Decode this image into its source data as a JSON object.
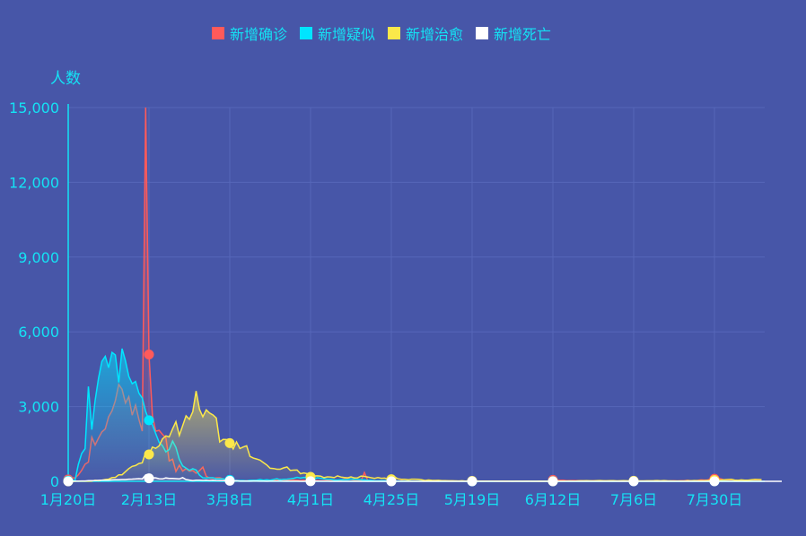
{
  "chart_data": {
    "type": "area",
    "ylabel": "人数",
    "ylim": [
      0,
      15000
    ],
    "y_ticks": [
      "0",
      "3,000",
      "6,000",
      "9,000",
      "12,000",
      "15,000"
    ],
    "y_tick_values": [
      0,
      3000,
      6000,
      9000,
      12000,
      15000
    ],
    "x_tick_labels": [
      "1月20日",
      "2月13日",
      "3月8日",
      "4月1日",
      "4月25日",
      "5月19日",
      "6月12日",
      "7月6日",
      "7月30日"
    ],
    "x_tick_interval_days": 24,
    "grid": true,
    "legend_placement": "top-center",
    "colors": {
      "background": "#4756a8",
      "grid": "#5667b9",
      "axis": "#14e3f5",
      "text": "#14e3f5"
    },
    "series": [
      {
        "name": "新增确诊",
        "color": "#ff5a5a",
        "values": [
          77,
          149,
          131,
          259,
          444,
          688,
          769,
          1771,
          1459,
          1737,
          1981,
          2099,
          2590,
          2829,
          3235,
          3887,
          3694,
          3143,
          3399,
          2656,
          3062,
          2478,
          2015,
          15152,
          5090,
          2641,
          2009,
          2048,
          1886,
          1749,
          820,
          889,
          397,
          648,
          409,
          508,
          406,
          433,
          327,
          427,
          573,
          202,
          125,
          119,
          139,
          143,
          99,
          44,
          40,
          19,
          24,
          15,
          8,
          11,
          20,
          16,
          21,
          13,
          34,
          39,
          41,
          46,
          39,
          78,
          47,
          67,
          55,
          54,
          45,
          31,
          48,
          36,
          35,
          35,
          31,
          19,
          30,
          39,
          32,
          62,
          42,
          46,
          99,
          108,
          89,
          46,
          36,
          26,
          352,
          27,
          16,
          8,
          11,
          12,
          10,
          6,
          11,
          6,
          3,
          22,
          2,
          4,
          1,
          2,
          1,
          2,
          1,
          2,
          2,
          1,
          1,
          17,
          7,
          2,
          7,
          3,
          5,
          8,
          5,
          6,
          6,
          6,
          4,
          3,
          3,
          11,
          7,
          5,
          4,
          4,
          1,
          4,
          2,
          7,
          4,
          5,
          1,
          4,
          4,
          5,
          3,
          3,
          11,
          8,
          57,
          49,
          40,
          44,
          28,
          25,
          32,
          26,
          30,
          22,
          13,
          11,
          22,
          19,
          13,
          17,
          7,
          8,
          19,
          3,
          3,
          3,
          5,
          3,
          8,
          4,
          7,
          7,
          10,
          8,
          9,
          11,
          10,
          8,
          14,
          13,
          22,
          14,
          20,
          22,
          39,
          22,
          22,
          37,
          59,
          50,
          55,
          109,
          105,
          127,
          98,
          49,
          43,
          36,
          27,
          33,
          41,
          40,
          47,
          24,
          28,
          44,
          35
        ]
      },
      {
        "name": "新增疑似",
        "color": "#00e5ff",
        "values": [
          27,
          60,
          20,
          680,
          1118,
          1309,
          3806,
          2077,
          3248,
          4148,
          4812,
          5019,
          4562,
          5173,
          5072,
          3971,
          5328,
          4833,
          4214,
          3916,
          4008,
          3536,
          3342,
          2807,
          2450,
          2277,
          1918,
          1563,
          1432,
          1185,
          1277,
          1614,
          1361,
          882,
          620,
          530,
          439,
          508,
          452,
          248,
          141,
          129,
          143,
          143,
          102,
          99,
          102,
          84,
          60,
          36,
          31,
          33,
          33,
          17,
          39,
          41,
          45,
          73,
          47,
          64,
          47,
          74,
          99,
          63,
          82,
          87,
          98,
          124,
          161,
          129,
          160,
          155,
          99,
          90,
          143,
          122,
          98,
          88,
          78,
          54,
          49,
          65,
          72,
          73,
          94,
          76,
          73,
          63,
          59,
          45,
          40,
          24,
          21,
          30,
          27,
          18,
          10,
          12,
          10,
          11,
          8,
          5,
          3,
          1,
          2,
          4,
          5,
          3,
          4,
          4,
          1,
          3,
          2,
          5,
          5,
          3,
          4,
          3,
          2,
          2,
          2,
          1,
          0,
          1,
          4,
          2,
          3,
          4,
          6,
          3,
          3,
          3,
          3,
          3,
          4,
          1,
          1,
          3,
          3,
          4,
          6,
          2,
          4,
          1,
          7,
          2,
          5,
          3,
          4,
          4,
          6,
          5,
          3,
          3,
          4,
          2,
          1,
          4,
          3,
          5,
          2,
          2,
          3,
          2,
          3,
          3,
          3,
          3,
          6,
          7,
          3,
          3,
          2,
          5,
          2,
          4,
          4,
          4,
          5,
          3,
          2,
          0,
          5,
          9,
          8,
          4,
          10,
          3,
          4,
          4,
          4,
          5,
          6,
          8,
          4,
          3,
          2,
          3,
          2,
          3,
          2,
          1,
          4,
          2,
          2,
          3,
          1
        ]
      },
      {
        "name": "新增治愈",
        "color": "#fbe84a",
        "values": [
          0,
          0,
          0,
          6,
          3,
          11,
          2,
          9,
          43,
          21,
          47,
          72,
          85,
          147,
          157,
          262,
          261,
          387,
          510,
          600,
          632,
          716,
          744,
          1171,
          1081,
          1373,
          1323,
          1425,
          1701,
          1824,
          1779,
          2109,
          2393,
          1846,
          2231,
          2628,
          2491,
          2794,
          3622,
          2884,
          2589,
          2867,
          2742,
          2663,
          2540,
          1584,
          1681,
          1678,
          1535,
          1297,
          1578,
          1318,
          1377,
          1427,
          1000,
          930,
          894,
          848,
          751,
          653,
          526,
          513,
          484,
          486,
          538,
          576,
          436,
          448,
          455,
          305,
          336,
          304,
          180,
          212,
          220,
          209,
          149,
          181,
          173,
          146,
          221,
          174,
          152,
          139,
          180,
          137,
          142,
          211,
          197,
          171,
          144,
          118,
          151,
          123,
          128,
          85,
          86,
          175,
          98,
          82,
          84,
          61,
          85,
          86,
          84,
          62,
          32,
          53,
          40,
          37,
          40,
          24,
          24,
          20,
          21,
          17,
          14,
          21,
          7,
          20,
          19,
          17,
          9,
          10,
          11,
          9,
          8,
          9,
          7,
          9,
          8,
          9,
          5,
          9,
          10,
          5,
          9,
          6,
          4,
          3,
          7,
          4,
          5,
          9,
          4,
          4,
          6,
          8,
          10,
          16,
          12,
          14,
          21,
          20,
          25,
          20,
          17,
          25,
          31,
          21,
          21,
          26,
          26,
          19,
          22,
          24,
          22,
          17,
          21,
          20,
          19,
          17,
          22,
          21,
          26,
          33,
          20,
          31,
          23,
          17,
          15,
          15,
          15,
          14,
          25,
          20,
          31,
          29,
          29,
          29,
          37,
          31,
          52,
          51,
          58,
          62,
          72,
          80,
          51,
          40,
          59,
          48,
          46,
          60,
          75,
          72,
          68
        ]
      },
      {
        "name": "新增死亡",
        "color": "#ffffff",
        "values": [
          0,
          3,
          8,
          8,
          16,
          15,
          24,
          26,
          26,
          38,
          43,
          46,
          45,
          57,
          64,
          65,
          73,
          73,
          86,
          89,
          97,
          108,
          97,
          254,
          121,
          143,
          142,
          105,
          98,
          136,
          114,
          118,
          109,
          97,
          150,
          71,
          52,
          29,
          44,
          47,
          35,
          42,
          31,
          38,
          31,
          30,
          28,
          27,
          22,
          17,
          22,
          11,
          7,
          13,
          10,
          14,
          13,
          11,
          8,
          3,
          7,
          6,
          9,
          7,
          4,
          6,
          5,
          3,
          5,
          1,
          1,
          7,
          6,
          6,
          4,
          3,
          2,
          2,
          1,
          1,
          0,
          0,
          0,
          1,
          0,
          0,
          0,
          0,
          0,
          0,
          0,
          0,
          0,
          0,
          0,
          0,
          0,
          0,
          0,
          0,
          0,
          0,
          0,
          0,
          0,
          0,
          0,
          0,
          0,
          0,
          0,
          0,
          0,
          0,
          0,
          0,
          0,
          0,
          0,
          0,
          0,
          0,
          0,
          0,
          0,
          0,
          0,
          0,
          0,
          0,
          0,
          0,
          0,
          0,
          0,
          0,
          0,
          0,
          0,
          0,
          0,
          0,
          0,
          0,
          0,
          0,
          0,
          0,
          0,
          0,
          0,
          0,
          0,
          0,
          0,
          0,
          0,
          0,
          0,
          0,
          0,
          0,
          0,
          0,
          0,
          0,
          0,
          0,
          0,
          0,
          0,
          0,
          0,
          0,
          0,
          0,
          0,
          0,
          0,
          0,
          0,
          0,
          0,
          0,
          0,
          0,
          0,
          0,
          0,
          0,
          0,
          0,
          0,
          0,
          0,
          0,
          0,
          0,
          0,
          0,
          0,
          0,
          0,
          0,
          0,
          0,
          0,
          0,
          0,
          0,
          0,
          0,
          0
        ]
      }
    ]
  }
}
